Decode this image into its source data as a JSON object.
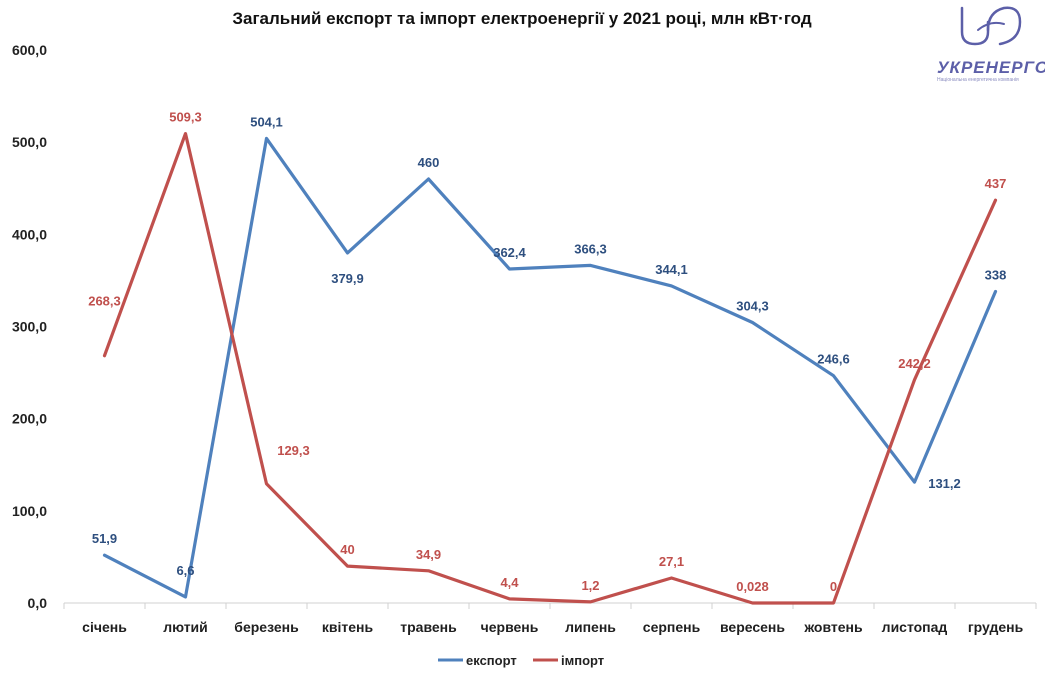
{
  "chart_data": {
    "type": "line",
    "title": "Загальний  експорт та імпорт електроенергії у 2021 році, млн кВт·год",
    "xlabel": "",
    "ylabel": "",
    "ylim": [
      0,
      600
    ],
    "yticks": [
      "0,0",
      "100,0",
      "200,0",
      "300,0",
      "400,0",
      "500,0",
      "600,0"
    ],
    "categories": [
      "січень",
      "лютий",
      "березень",
      "квітень",
      "травень",
      "червень",
      "липень",
      "серпень",
      "вересень",
      "жовтень",
      "листопад",
      "грудень"
    ],
    "series": [
      {
        "name": "експорт",
        "color": "#4f81bd",
        "labelColor": "#2e4f7f",
        "values": [
          51.9,
          6.6,
          504.1,
          379.9,
          460,
          362.4,
          366.3,
          344.1,
          304.3,
          246.6,
          131.2,
          338
        ],
        "labels": [
          "51,9",
          "6,6",
          "504,1",
          "379,9",
          "460",
          "362,4",
          "366,3",
          "344,1",
          "304,3",
          "246,6",
          "131,2",
          "338"
        ]
      },
      {
        "name": "імпорт",
        "color": "#c0504d",
        "labelColor": "#c0504d",
        "values": [
          268.3,
          509.3,
          129.3,
          40,
          34.9,
          4.4,
          1.2,
          27.1,
          0.028,
          0,
          242.2,
          437
        ],
        "labels": [
          "268,3",
          "509,3",
          "129,3",
          "40",
          "34,9",
          "4,4",
          "1,2",
          "27,1",
          "0,028",
          "0",
          "242,2",
          "437"
        ]
      }
    ],
    "legend": "bottom",
    "grid": false
  },
  "logo": {
    "text": "УКРЕНЕРГО",
    "subtitle": "Національна енергетична компанія"
  }
}
